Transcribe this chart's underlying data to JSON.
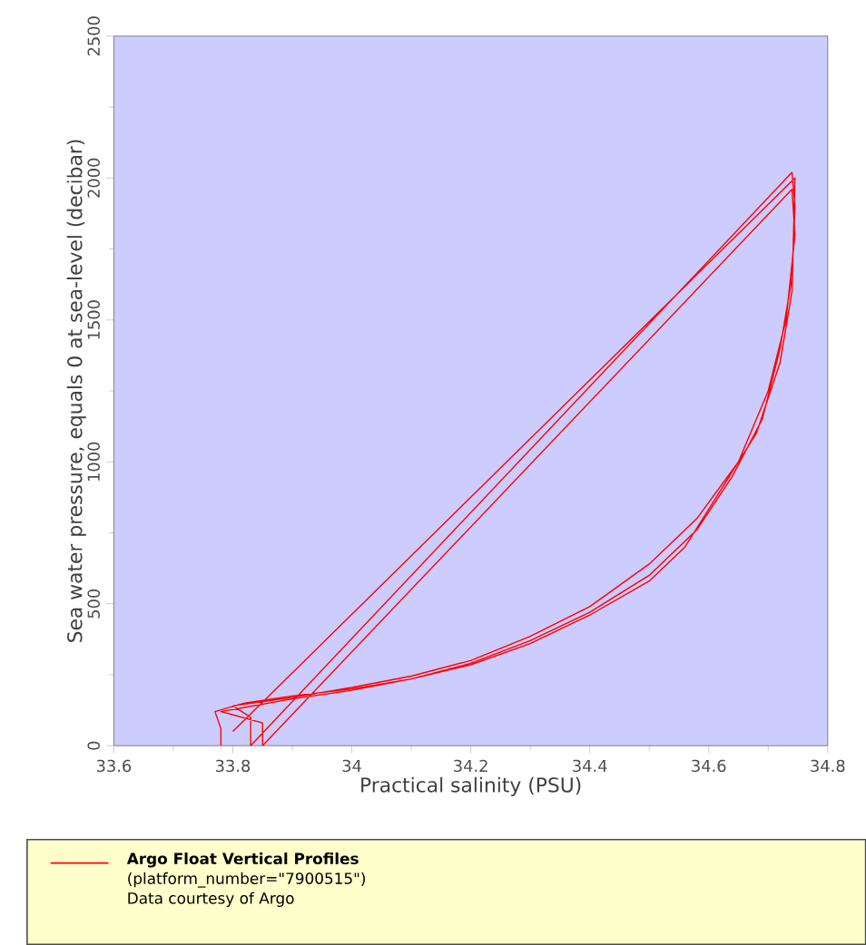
{
  "chart_data": {
    "type": "line",
    "xlabel": "Practical salinity (PSU)",
    "ylabel": "Sea water pressure, equals 0 at sea-level (decibar)",
    "xlim": [
      33.6,
      34.8
    ],
    "xticks": [
      33.6,
      33.8,
      34,
      34.2,
      34.4,
      34.6,
      34.8
    ],
    "ylim": [
      0,
      2500
    ],
    "yticks": [
      0,
      500,
      1000,
      1500,
      2000,
      2500
    ],
    "grid": false,
    "legend": "bottom",
    "marker": "none",
    "line_style": "solid",
    "annotations": [
      "(platform_number=\"7900515\")",
      "Data courtesy of Argo"
    ],
    "series": [
      {
        "name": "Argo Float Vertical Profiles",
        "color": "#ff0000",
        "x": [
          33.78,
          33.78,
          33.77,
          33.82,
          33.9,
          34.0,
          34.1,
          34.2,
          34.3,
          34.4,
          34.5,
          34.58,
          34.64,
          34.69,
          34.72,
          34.74,
          34.745,
          34.74,
          33.83,
          33.83,
          33.8,
          33.9,
          34.0,
          34.1,
          34.2,
          34.3,
          34.4,
          34.5,
          34.58,
          34.65,
          34.7,
          34.73,
          34.745,
          34.74,
          33.85,
          33.85,
          33.78,
          33.9,
          34.0,
          34.1,
          34.2,
          34.3,
          34.4,
          34.5,
          34.56,
          34.62,
          34.68,
          34.72,
          34.74,
          34.745,
          33.8
        ],
        "values": [
          0,
          60,
          120,
          150,
          175,
          200,
          235,
          290,
          370,
          470,
          600,
          760,
          950,
          1150,
          1400,
          1650,
          1900,
          2020,
          0,
          100,
          140,
          170,
          205,
          245,
          300,
          385,
          490,
          640,
          800,
          1000,
          1250,
          1500,
          1800,
          1960,
          0,
          80,
          120,
          165,
          195,
          235,
          285,
          360,
          460,
          580,
          700,
          900,
          1100,
          1350,
          1600,
          2000,
          50
        ]
      }
    ]
  }
}
